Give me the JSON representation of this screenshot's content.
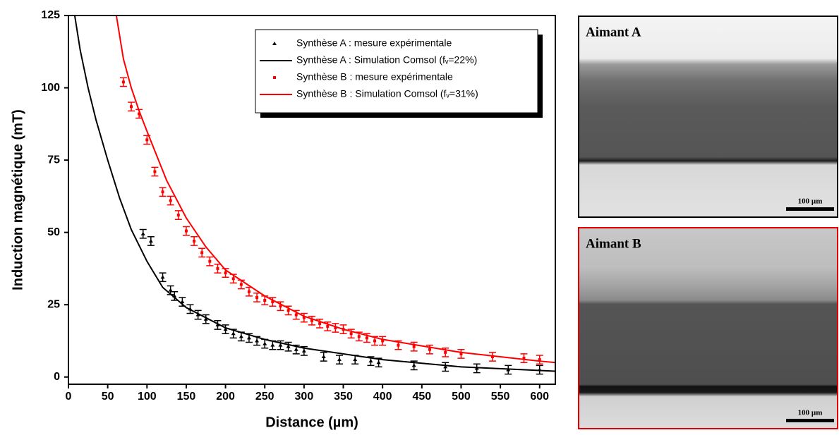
{
  "chart_data": {
    "type": "scatter",
    "xlabel": "Distance (µm)",
    "ylabel": "Induction magnétique (mT)",
    "xlim": [
      0,
      620
    ],
    "ylim": [
      -2.5,
      125
    ],
    "xticks": [
      0,
      50,
      100,
      150,
      200,
      250,
      300,
      350,
      400,
      450,
      500,
      550,
      600
    ],
    "yticks": [
      0,
      25,
      50,
      75,
      100,
      125
    ],
    "legend": "upper right",
    "series": [
      {
        "name": "Synthèse A : mesure expérimentale",
        "color": "#000000",
        "mode": "points",
        "marker": "triangle",
        "error": 1.5,
        "x": [
          95,
          105,
          120,
          130,
          135,
          145,
          155,
          165,
          175,
          190,
          200,
          210,
          220,
          230,
          240,
          250,
          260,
          270,
          280,
          290,
          300,
          325,
          345,
          365,
          385,
          395,
          440,
          480,
          520,
          560,
          600
        ],
        "values": [
          49.5,
          47,
          34.5,
          30,
          28,
          26,
          23.5,
          21.5,
          20,
          18,
          16.5,
          15,
          14,
          13.5,
          12.5,
          11.5,
          11,
          11,
          10.5,
          9.5,
          9,
          7,
          6,
          6,
          5.5,
          5,
          4,
          3.5,
          3,
          2.5,
          2.5
        ]
      },
      {
        "name": "Synthèse A : Simulation Comsol (fᵥ=22%)",
        "color": "#000000",
        "mode": "line",
        "x": [
          8,
          15,
          25,
          35,
          50,
          65,
          80,
          100,
          120,
          150,
          200,
          250,
          300,
          400,
          500,
          620
        ],
        "values": [
          125,
          113,
          100,
          89,
          75,
          62,
          51,
          40,
          31,
          24,
          17,
          13,
          10,
          6,
          3.5,
          2
        ]
      },
      {
        "name": "Synthèse B : mesure expérimentale",
        "color": "#ff0000",
        "mode": "points",
        "marker": "square",
        "error": 1.5,
        "x": [
          70,
          80,
          90,
          100,
          110,
          120,
          130,
          140,
          150,
          160,
          170,
          180,
          190,
          200,
          210,
          220,
          230,
          240,
          250,
          260,
          270,
          280,
          290,
          300,
          310,
          320,
          330,
          340,
          350,
          360,
          370,
          380,
          390,
          400,
          420,
          440,
          460,
          480,
          500,
          540,
          580,
          600
        ],
        "values": [
          102,
          93.5,
          91,
          82,
          71,
          64,
          61,
          56,
          50.5,
          47,
          43,
          40,
          37.5,
          36,
          34,
          32,
          29.5,
          27.5,
          26.5,
          26,
          24.5,
          23,
          21.5,
          20.5,
          19.5,
          18.5,
          17.5,
          17,
          16.5,
          15,
          14,
          13.5,
          12.5,
          12.5,
          11,
          10.5,
          9.5,
          8.5,
          8,
          7,
          6.5,
          6
        ]
      },
      {
        "name": "Synthèse B : Simulation Comsol (fᵥ=31%)",
        "color": "#ff0000",
        "mode": "line",
        "x": [
          61,
          70,
          80,
          90,
          100,
          125,
          150,
          175,
          200,
          250,
          300,
          350,
          400,
          500,
          600,
          620
        ],
        "values": [
          125,
          110,
          100,
          92,
          85,
          68,
          55,
          45,
          37,
          28,
          21,
          16.5,
          13,
          8.5,
          5.5,
          5
        ]
      }
    ]
  },
  "images": [
    {
      "title": "Aimant A",
      "scale_bar": "100 µm"
    },
    {
      "title": "Aimant B",
      "scale_bar": "100 µm"
    }
  ]
}
